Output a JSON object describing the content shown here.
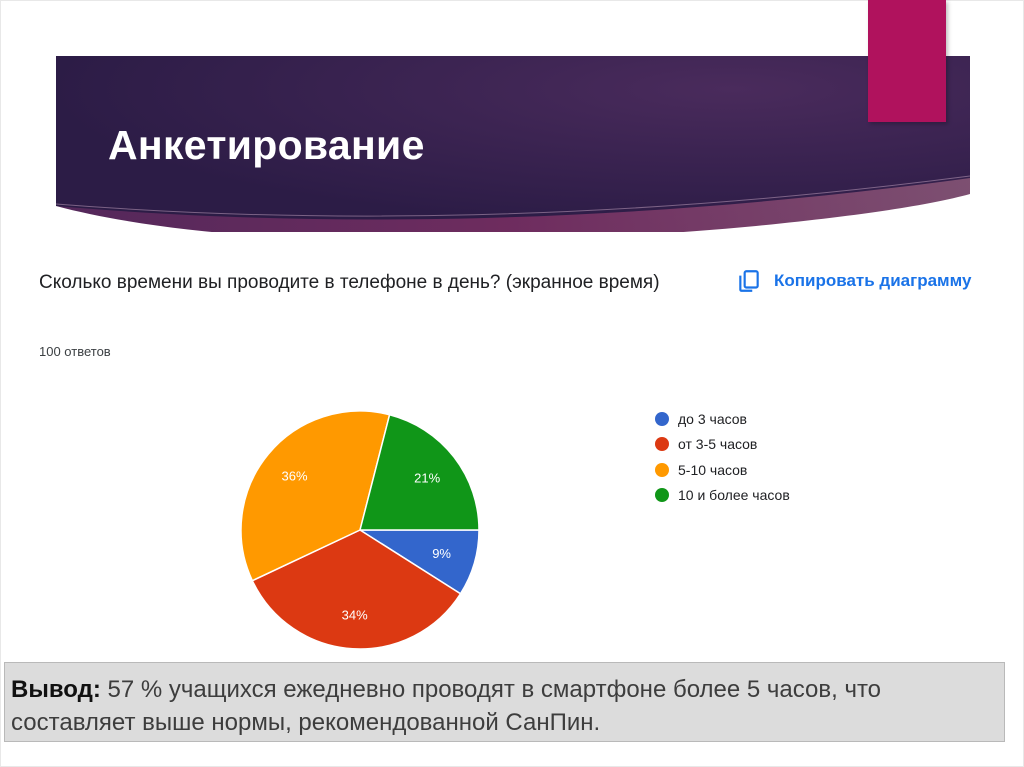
{
  "slide": {
    "title": "Анкетирование",
    "colors": {
      "banner_left": "#2f1e4a",
      "banner_right": "#44244f",
      "accent": "#b0125d"
    }
  },
  "form": {
    "question": "Сколько времени вы проводите в телефоне в день? (экранное время)",
    "responses": "100 ответов",
    "copy_button": {
      "label": "Копировать диаграмму",
      "icon": "copy-icon"
    }
  },
  "chart_data": {
    "type": "pie",
    "categories": [
      "до 3 часов",
      "от 3-5 часов",
      "5-10 часов",
      "10 и более часов"
    ],
    "values": [
      9,
      34,
      36,
      21
    ],
    "labels": [
      "9%",
      "34%",
      "36%",
      "21%"
    ],
    "colors": [
      "#3366cc",
      "#dc3912",
      "#ff9900",
      "#109618"
    ],
    "legend_position": "right"
  },
  "conclusion": {
    "label": "Вывод:",
    "text": " 57 % учащихся ежедневно проводят в смартфоне более 5 часов, что составляет выше нормы, рекомендованной СанПин."
  }
}
